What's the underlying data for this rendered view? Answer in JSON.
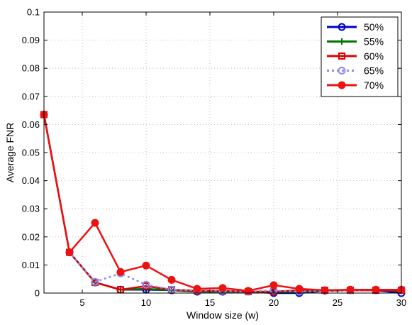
{
  "chart_data": {
    "type": "line",
    "xlabel": "Window size (w)",
    "ylabel": "Average FNR",
    "xlim": [
      2,
      30
    ],
    "ylim": [
      0,
      0.1
    ],
    "xticks": [
      5,
      10,
      15,
      20,
      25,
      30
    ],
    "yticks": [
      0,
      0.01,
      0.02,
      0.03,
      0.04,
      0.05,
      0.06,
      0.07,
      0.08,
      0.09,
      0.1
    ],
    "grid": true,
    "legend_position": "top-right",
    "x": [
      2,
      4,
      6,
      8,
      10,
      12,
      14,
      16,
      18,
      20,
      22,
      24,
      26,
      28,
      30
    ],
    "series": [
      {
        "name": "50%",
        "color": "#0000cc",
        "line_style": "solid",
        "marker": "circle",
        "values": [
          0.0635,
          0.0145,
          0.0038,
          0.0012,
          0.0012,
          0.001,
          0.0005,
          0.0005,
          0.0005,
          0.0,
          0.0,
          0.0008,
          0.001,
          0.001,
          0.0
        ]
      },
      {
        "name": "55%",
        "color": "#007700",
        "line_style": "solid",
        "marker": "plus",
        "values": [
          0.0635,
          0.0145,
          0.0038,
          0.0012,
          0.0015,
          0.001,
          0.0005,
          0.0005,
          0.0005,
          0.0003,
          0.0005,
          0.0008,
          0.001,
          0.001,
          0.0008
        ]
      },
      {
        "name": "60%",
        "color": "#dd0000",
        "line_style": "solid",
        "marker": "square",
        "values": [
          0.0635,
          0.0145,
          0.0038,
          0.0012,
          0.0025,
          0.0012,
          0.0008,
          0.0008,
          0.0005,
          0.0005,
          0.001,
          0.001,
          0.001,
          0.001,
          0.001
        ]
      },
      {
        "name": "65%",
        "color": "#8c8cf0",
        "line_style": "dotted",
        "marker": "circle",
        "values": [
          0.0635,
          0.0145,
          0.004,
          0.007,
          0.003,
          0.0012,
          0.001,
          0.0008,
          0.0005,
          0.001,
          0.0005,
          0.0008,
          0.001,
          0.0012,
          0.0012
        ]
      },
      {
        "name": "70%",
        "color": "#ee1111",
        "line_style": "solid",
        "marker": "circle-filled",
        "values": [
          0.0635,
          0.0145,
          0.025,
          0.0075,
          0.0098,
          0.0047,
          0.0015,
          0.0018,
          0.0008,
          0.0028,
          0.0015,
          0.001,
          0.0012,
          0.0012,
          0.0012
        ]
      }
    ]
  }
}
